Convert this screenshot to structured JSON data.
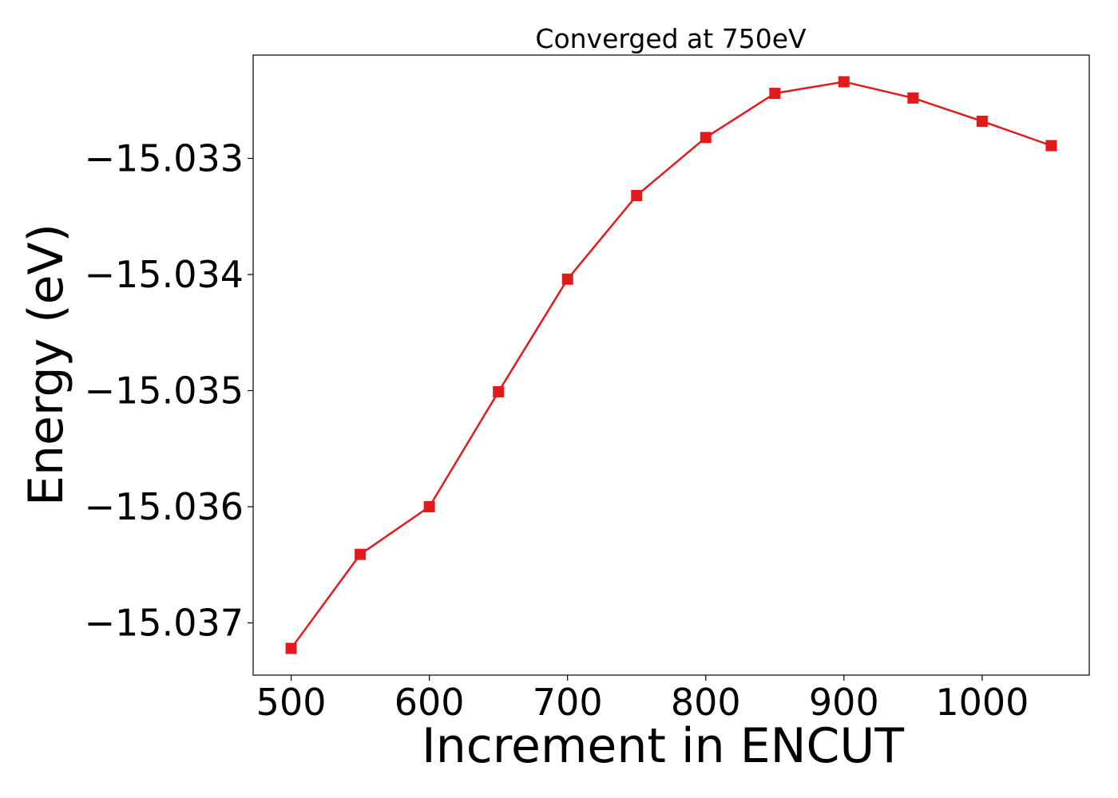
{
  "chart_data": {
    "type": "line",
    "title": "Converged at 750eV",
    "xlabel": "Increment in ENCUT",
    "ylabel": "Energy (eV)",
    "xlim": [
      472.5,
      1077.5
    ],
    "ylim": [
      -15.03745,
      -15.03211
    ],
    "xticks": [
      500,
      600,
      700,
      800,
      900,
      1000
    ],
    "xtick_labels": [
      "500",
      "600",
      "700",
      "800",
      "900",
      "1000"
    ],
    "yticks": [
      -15.037,
      -15.036,
      -15.035,
      -15.034,
      -15.033
    ],
    "ytick_labels": [
      "−15.037",
      "−15.036",
      "−15.035",
      "−15.034",
      "−15.033"
    ],
    "grid": false,
    "series": [
      {
        "color": "#e31a1c",
        "marker": "square",
        "x": [
          500,
          550,
          600,
          650,
          700,
          750,
          800,
          850,
          900,
          950,
          1000,
          1050
        ],
        "y": [
          -15.03722,
          -15.03641,
          -15.036,
          -15.03501,
          -15.03404,
          -15.03332,
          -15.03282,
          -15.03244,
          -15.03234,
          -15.03248,
          -15.03268,
          -15.03289
        ]
      }
    ]
  }
}
